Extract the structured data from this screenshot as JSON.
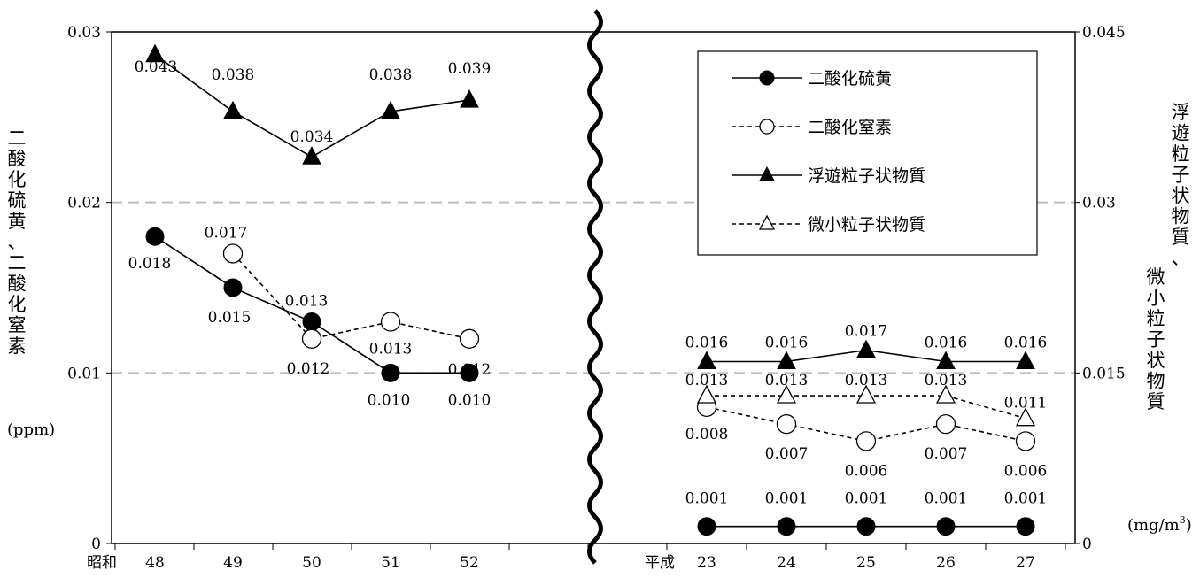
{
  "chart_data": {
    "type": "line",
    "left_axis": {
      "title_chars": [
        "二",
        "酸",
        "化",
        "硫",
        "黄",
        "、",
        "二",
        "酸",
        "化",
        "窒",
        "素"
      ],
      "unit": "(ppm)",
      "ylim": [
        0,
        0.03
      ],
      "ticks": [
        {
          "value": 0,
          "label": "0"
        },
        {
          "value": 0.01,
          "label": "0.01"
        },
        {
          "value": 0.02,
          "label": "0.02"
        },
        {
          "value": 0.03,
          "label": "0.03"
        }
      ]
    },
    "right_axis": {
      "title_col1": [
        "浮",
        "遊",
        "粒",
        "子",
        "状",
        "物",
        "質",
        "、"
      ],
      "title_col2": [
        "微",
        "小",
        "粒",
        "子",
        "状",
        "物",
        "質"
      ],
      "unit": "(mg/m",
      "unit_sup": "3",
      "unit_close": ")",
      "ylim": [
        0,
        0.045
      ],
      "ticks": [
        {
          "value": 0,
          "label": "0"
        },
        {
          "value": 0.015,
          "label": "0.015"
        },
        {
          "value": 0.03,
          "label": "0.03"
        },
        {
          "value": 0.045,
          "label": "0.045"
        }
      ]
    },
    "x_groups": [
      {
        "era": "昭和",
        "categories": [
          "48",
          "49",
          "50",
          "51",
          "52"
        ]
      },
      {
        "era": "平成",
        "categories": [
          "23",
          "24",
          "25",
          "26",
          "27"
        ]
      }
    ],
    "grid": "horizontal dashed",
    "legend_position": "top-right",
    "series": [
      {
        "name": "二酸化硫黄",
        "axis": "left",
        "style": "solid",
        "marker": "filled-circle",
        "values": [
          [
            0.018,
            0.015,
            0.013,
            0.01,
            0.01
          ],
          [
            0.001,
            0.001,
            0.001,
            0.001,
            0.001
          ]
        ],
        "labels": [
          [
            "0.018",
            "0.015",
            "0.013",
            "0.010",
            "0.010"
          ],
          [
            "0.001",
            "0.001",
            "0.001",
            "0.001",
            "0.001"
          ]
        ]
      },
      {
        "name": "二酸化窒素",
        "axis": "left",
        "style": "dashed",
        "marker": "open-circle",
        "values": [
          [
            null,
            0.017,
            0.012,
            0.013,
            0.012
          ],
          [
            0.008,
            0.007,
            0.006,
            0.007,
            0.006
          ]
        ],
        "labels": [
          [
            null,
            "0.017",
            "0.012",
            "0.013",
            "0.012"
          ],
          [
            "0.008",
            "0.007",
            "0.006",
            "0.007",
            "0.006"
          ]
        ]
      },
      {
        "name": "浮遊粒子状物質",
        "axis": "right",
        "style": "solid",
        "marker": "filled-triangle",
        "values": [
          [
            0.043,
            0.038,
            0.034,
            0.038,
            0.039
          ],
          [
            0.016,
            0.016,
            0.017,
            0.016,
            0.016
          ]
        ],
        "labels": [
          [
            "0.043",
            "0.038",
            "0.034",
            "0.038",
            "0.039"
          ],
          [
            "0.016",
            "0.016",
            "0.017",
            "0.016",
            "0.016"
          ]
        ]
      },
      {
        "name": "微小粒子状物質",
        "axis": "right",
        "style": "dashed",
        "marker": "open-triangle",
        "values": [
          [
            null,
            null,
            null,
            null,
            null
          ],
          [
            0.013,
            0.013,
            0.013,
            0.013,
            0.011
          ]
        ],
        "labels": [
          [
            null,
            null,
            null,
            null,
            null
          ],
          [
            "0.013",
            "0.013",
            "0.013",
            "0.013",
            "0.011"
          ]
        ]
      }
    ]
  }
}
